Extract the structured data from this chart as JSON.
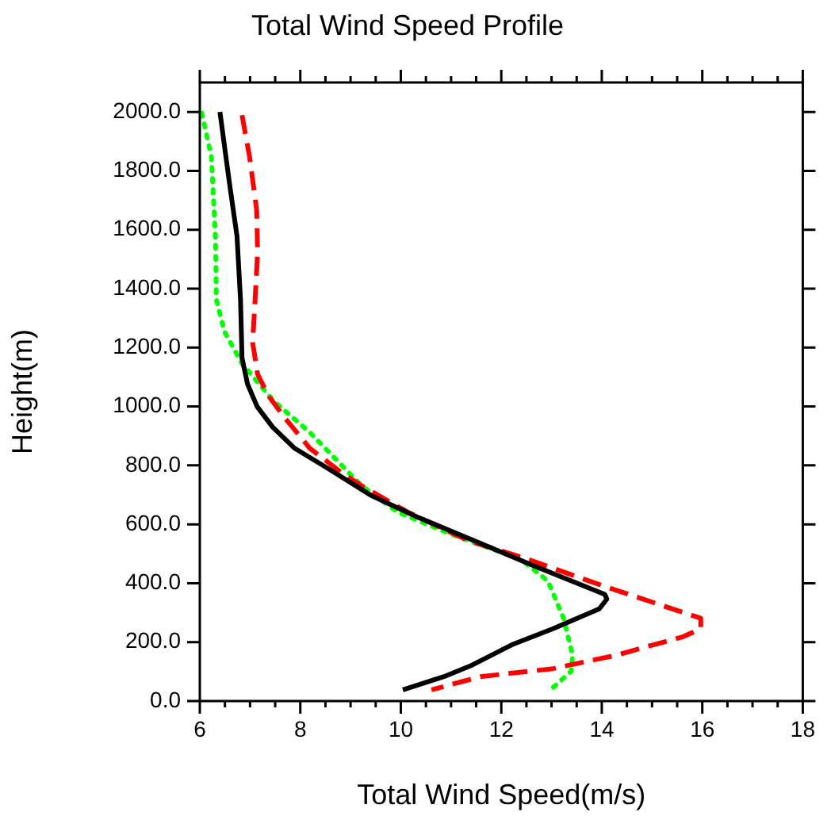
{
  "chart_data": {
    "type": "line",
    "title": "Total Wind Speed Profile",
    "xlabel": "Total Wind Speed(m/s)",
    "ylabel": "Height(m)",
    "xlim": [
      6,
      18
    ],
    "ylim": [
      0,
      2100
    ],
    "xticks": [
      6,
      {
        "value": 6.5,
        "label": null
      },
      {
        "value": 7,
        "label": null
      },
      {
        "value": 7.5,
        "label": null
      },
      8,
      {
        "value": 8.5,
        "label": null
      },
      {
        "value": 9,
        "label": null
      },
      {
        "value": 9.5,
        "label": null
      },
      10,
      {
        "value": 10.5,
        "label": null
      },
      {
        "value": 11,
        "label": null
      },
      {
        "value": 11.5,
        "label": null
      },
      12,
      {
        "value": 12.5,
        "label": null
      },
      {
        "value": 13,
        "label": null
      },
      {
        "value": 13.5,
        "label": null
      },
      14,
      {
        "value": 14.5,
        "label": null
      },
      {
        "value": 15,
        "label": null
      },
      {
        "value": 15.5,
        "label": null
      },
      16,
      {
        "value": 16.5,
        "label": null
      },
      {
        "value": 17,
        "label": null
      },
      {
        "value": 17.5,
        "label": null
      },
      18
    ],
    "yticks": [
      {
        "value": 0,
        "label": "0.0"
      },
      {
        "value": 200,
        "label": "200.0"
      },
      {
        "value": 400,
        "label": "400.0"
      },
      {
        "value": 600,
        "label": "600.0"
      },
      {
        "value": 800,
        "label": "800.0"
      },
      {
        "value": 1000,
        "label": "1000.0"
      },
      {
        "value": 1200,
        "label": "1200.0"
      },
      {
        "value": 1400,
        "label": "1400.0"
      },
      {
        "value": 1600,
        "label": "1600.0"
      },
      {
        "value": 1800,
        "label": "1800.0"
      },
      {
        "value": 2000,
        "label": "2000.0"
      }
    ],
    "grid": false,
    "legend": false,
    "marker": "none",
    "series": [
      {
        "color": "#000000",
        "line_style": "solid",
        "x": [
          6.4,
          6.59,
          6.74,
          6.81,
          6.84,
          6.95,
          7.14,
          7.45,
          7.88,
          8.5,
          9.42,
          10.35,
          11.59,
          12.62,
          14.06,
          14.1,
          13.95,
          13.02,
          12.21,
          11.38,
          10.86,
          10.04
        ],
        "values": [
          2000,
          1758,
          1578,
          1362,
          1164,
          1076,
          1000,
          930,
          859,
          795,
          697,
          623,
          535,
          461,
          362,
          346,
          313,
          245,
          191,
          119,
          83,
          38
        ]
      },
      {
        "color": "#ff0000",
        "line_style": "dashed",
        "x": [
          6.84,
          6.99,
          7.13,
          7.15,
          7.1,
          7.05,
          7.15,
          7.36,
          7.67,
          8.19,
          8.8,
          9.22,
          10.14,
          11.38,
          12.41,
          14.06,
          15.97,
          15.97,
          15.61,
          14.27,
          13.03,
          11.59,
          10.61
        ],
        "values": [
          1989,
          1848,
          1669,
          1524,
          1362,
          1218,
          1110,
          1038,
          966,
          858,
          778,
          731,
          641,
          542,
          488,
          389,
          281,
          245,
          218,
          155,
          110,
          83,
          38
        ]
      },
      {
        "color": "#00ff00",
        "line_style": "dotted",
        "x": [
          6.04,
          6.23,
          6.31,
          6.33,
          6.49,
          6.84,
          7.46,
          8.19,
          8.91,
          9.22,
          9.94,
          10.97,
          12.41,
          12.93,
          13.24,
          13.42,
          13.39,
          12.98
        ],
        "values": [
          1996,
          1848,
          1578,
          1362,
          1254,
          1146,
          1020,
          912,
          785,
          731,
          641,
          569,
          479,
          407,
          281,
          155,
          101,
          38
        ]
      }
    ]
  }
}
